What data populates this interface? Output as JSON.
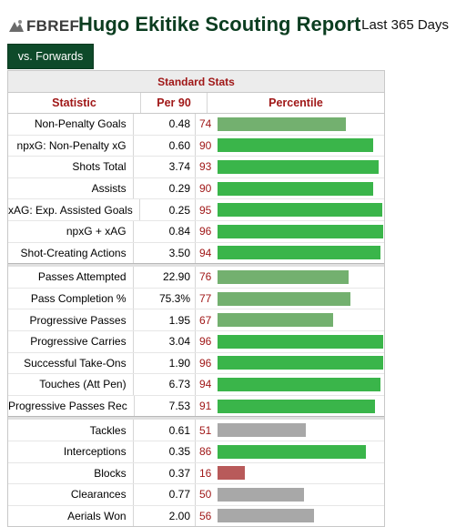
{
  "header": {
    "logo_text": "FBREF",
    "title": "Hugo Ekitike Scouting Report",
    "period": "Last 365 Days"
  },
  "tabs": [
    {
      "label": "vs. Forwards"
    }
  ],
  "table": {
    "section_title": "Standard Stats",
    "columns": {
      "statistic": "Statistic",
      "per90": "Per 90",
      "percentile": "Percentile"
    },
    "colors": {
      "high": "#3ab54a",
      "mid": "#73b06f",
      "low_neutral": "#a8a8a8",
      "low_bad": "#b85a5a"
    },
    "groups": [
      [
        {
          "stat": "Non-Penalty Goals",
          "per90": "0.48",
          "pct": 74,
          "color": "#73b06f"
        },
        {
          "stat": "npxG: Non-Penalty xG",
          "per90": "0.60",
          "pct": 90,
          "color": "#3ab54a"
        },
        {
          "stat": "Shots Total",
          "per90": "3.74",
          "pct": 93,
          "color": "#3ab54a"
        },
        {
          "stat": "Assists",
          "per90": "0.29",
          "pct": 90,
          "color": "#3ab54a"
        },
        {
          "stat": "xAG: Exp. Assisted Goals",
          "per90": "0.25",
          "pct": 95,
          "color": "#3ab54a"
        },
        {
          "stat": "npxG + xAG",
          "per90": "0.84",
          "pct": 96,
          "color": "#3ab54a"
        },
        {
          "stat": "Shot-Creating Actions",
          "per90": "3.50",
          "pct": 94,
          "color": "#3ab54a"
        }
      ],
      [
        {
          "stat": "Passes Attempted",
          "per90": "22.90",
          "pct": 76,
          "color": "#73b06f"
        },
        {
          "stat": "Pass Completion %",
          "per90": "75.3%",
          "pct": 77,
          "color": "#73b06f"
        },
        {
          "stat": "Progressive Passes",
          "per90": "1.95",
          "pct": 67,
          "color": "#73b06f"
        },
        {
          "stat": "Progressive Carries",
          "per90": "3.04",
          "pct": 96,
          "color": "#3ab54a"
        },
        {
          "stat": "Successful Take-Ons",
          "per90": "1.90",
          "pct": 96,
          "color": "#3ab54a"
        },
        {
          "stat": "Touches (Att Pen)",
          "per90": "6.73",
          "pct": 94,
          "color": "#3ab54a"
        },
        {
          "stat": "Progressive Passes Rec",
          "per90": "7.53",
          "pct": 91,
          "color": "#3ab54a"
        }
      ],
      [
        {
          "stat": "Tackles",
          "per90": "0.61",
          "pct": 51,
          "color": "#a8a8a8"
        },
        {
          "stat": "Interceptions",
          "per90": "0.35",
          "pct": 86,
          "color": "#3ab54a"
        },
        {
          "stat": "Blocks",
          "per90": "0.37",
          "pct": 16,
          "color": "#b85a5a"
        },
        {
          "stat": "Clearances",
          "per90": "0.77",
          "pct": 50,
          "color": "#a8a8a8"
        },
        {
          "stat": "Aerials Won",
          "per90": "2.00",
          "pct": 56,
          "color": "#a8a8a8"
        }
      ]
    ]
  }
}
